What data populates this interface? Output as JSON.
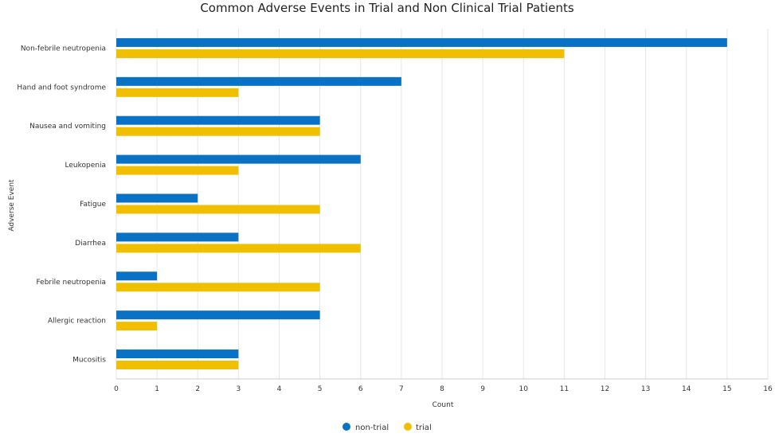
{
  "chart_data": {
    "type": "bar",
    "orientation": "horizontal",
    "title": "Common Adverse Events in Trial and Non Clinical Trial Patients",
    "xlabel": "Count",
    "ylabel": "Adverse Event",
    "xlim": [
      0,
      16
    ],
    "xticks": [
      "0",
      "1",
      "2",
      "3",
      "4",
      "5",
      "6",
      "7",
      "8",
      "9",
      "10",
      "11",
      "12",
      "13",
      "14",
      "15",
      "16"
    ],
    "grid": true,
    "legend_position": "bottom",
    "categories": [
      "Non-febrile neutropenia",
      "Hand and foot syndrome",
      "Nausea and vomiting",
      "Leukopenia",
      "Fatigue",
      "Diarrhea",
      "Febrile neutropenia",
      "Allergic reaction",
      "Mucositis"
    ],
    "series": [
      {
        "name": "non-trial",
        "color": "#0a72c4",
        "values": [
          15,
          7,
          5,
          6,
          2,
          3,
          1,
          5,
          3
        ]
      },
      {
        "name": "trial",
        "color": "#f0c000",
        "values": [
          11,
          3,
          5,
          3,
          5,
          6,
          5,
          1,
          3
        ]
      }
    ]
  }
}
